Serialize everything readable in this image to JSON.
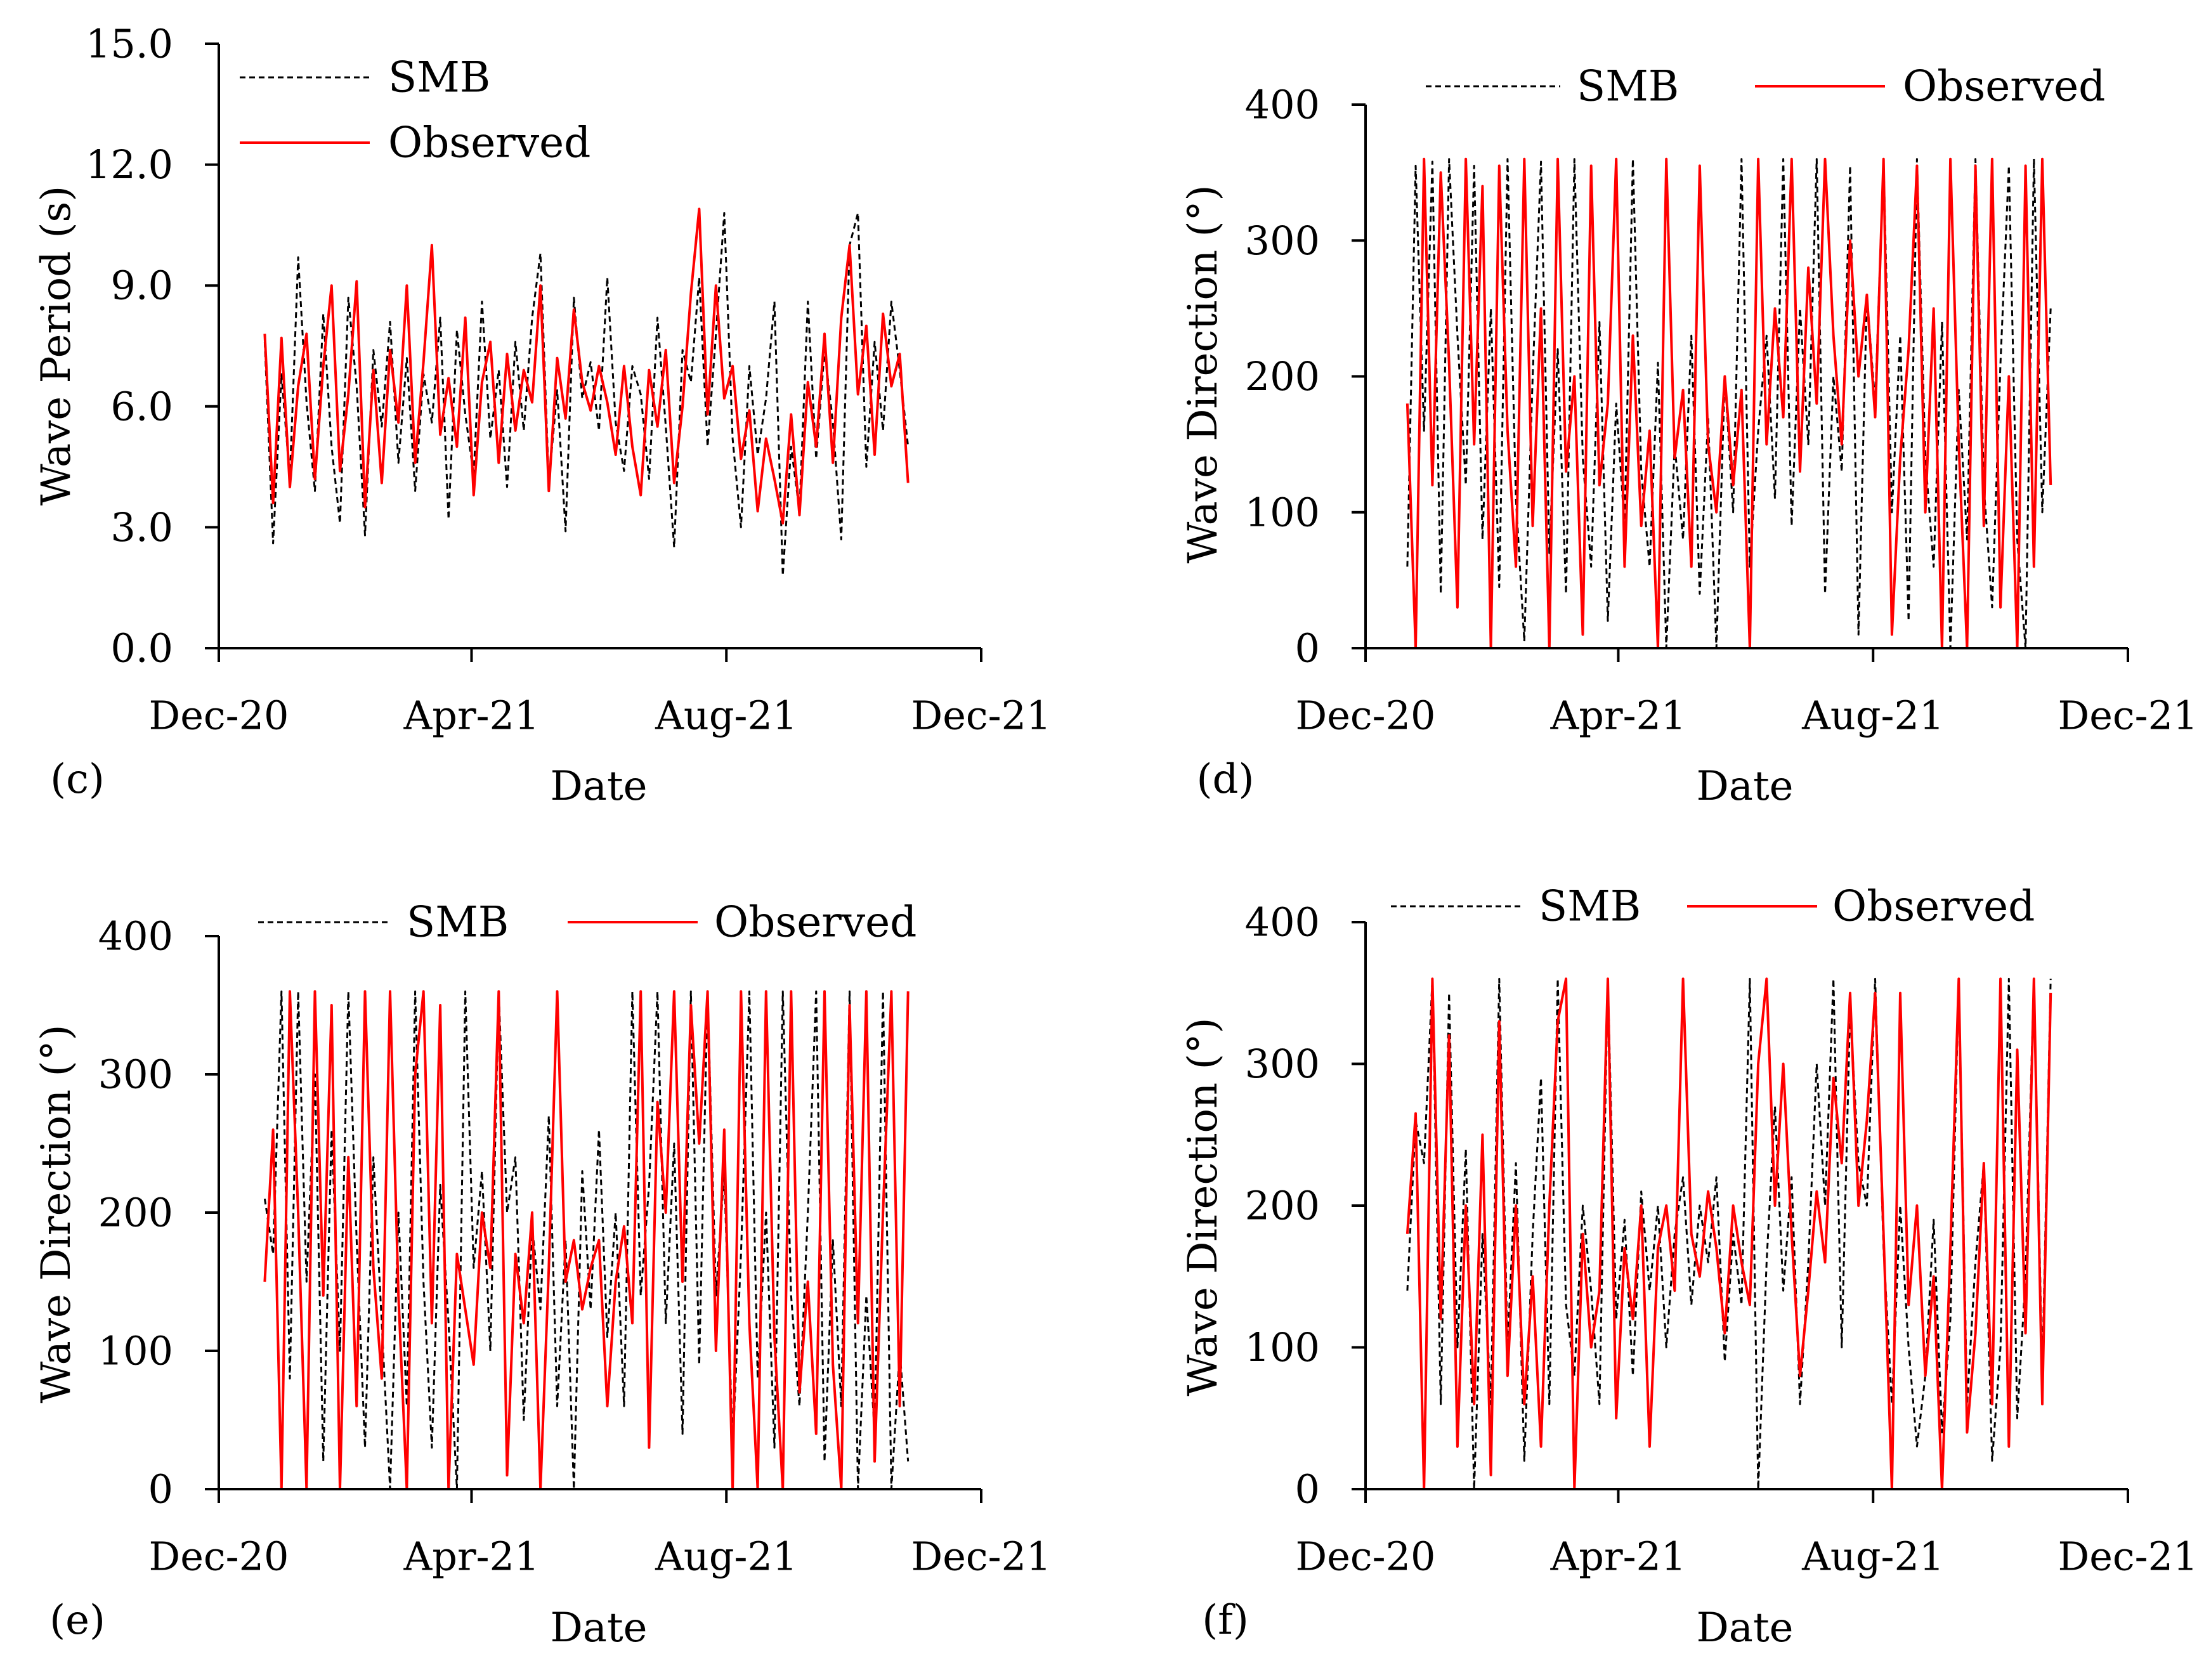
{
  "chart_data": [
    {
      "panel_label": "(c)",
      "type": "line",
      "title": "",
      "xlabel": "Date",
      "ylabel": "Wave Period (s)",
      "grid": false,
      "xlim": [
        0,
        365
      ],
      "x_ticks": [
        0,
        121,
        243,
        365
      ],
      "x_tick_labels": [
        "Dec-20",
        "Apr-21",
        "Aug-21",
        "Dec-21"
      ],
      "ylim": [
        0,
        15
      ],
      "y_ticks": [
        0,
        3,
        6,
        9,
        12,
        15
      ],
      "y_tick_labels": [
        "0.0",
        "3.0",
        "6.0",
        "9.0",
        "12.0",
        "15.0"
      ],
      "x_start": 22,
      "x_step": 4,
      "series": [
        {
          "name": "SMB",
          "color": "#000000",
          "dash": true,
          "values": [
            7.6,
            2.6,
            6.8,
            4.2,
            9.7,
            6.1,
            3.9,
            8.3,
            5.0,
            3.1,
            8.7,
            6.5,
            2.8,
            7.4,
            5.5,
            8.1,
            4.6,
            7.2,
            3.9,
            6.8,
            5.6,
            8.2,
            3.2,
            7.9,
            5.8,
            4.3,
            8.6,
            5.2,
            6.9,
            4.0,
            7.6,
            5.4,
            8.2,
            9.8,
            4.1,
            6.4,
            2.9,
            8.7,
            6.2,
            7.1,
            5.4,
            9.2,
            5.6,
            4.4,
            7.0,
            6.3,
            4.2,
            8.2,
            5.5,
            2.5,
            7.4,
            6.6,
            9.2,
            5.0,
            7.8,
            10.8,
            5.2,
            3.0,
            7.0,
            4.8,
            6.2,
            8.6,
            1.8,
            5.0,
            3.4,
            8.6,
            4.7,
            7.4,
            5.6,
            2.7,
            10.0,
            10.8,
            4.5,
            7.6,
            5.4,
            8.6,
            6.9,
            5.0
          ]
        },
        {
          "name": "Observed",
          "color": "#ff0000",
          "dash": false,
          "values": [
            7.8,
            3.6,
            7.7,
            4.0,
            6.5,
            7.8,
            4.2,
            7.0,
            9.0,
            4.4,
            6.3,
            9.1,
            3.5,
            6.9,
            4.1,
            7.4,
            5.6,
            9.0,
            4.6,
            7.1,
            10.0,
            5.3,
            6.7,
            5.0,
            8.2,
            3.8,
            6.6,
            7.6,
            4.6,
            7.3,
            5.4,
            6.9,
            6.1,
            9.0,
            3.9,
            7.2,
            5.7,
            8.4,
            6.6,
            5.9,
            7.0,
            6.1,
            4.8,
            7.0,
            5.0,
            3.8,
            6.9,
            5.5,
            7.4,
            4.1,
            6.0,
            8.8,
            10.9,
            5.8,
            9.0,
            6.2,
            7.0,
            4.7,
            5.9,
            3.4,
            5.2,
            4.2,
            3.1,
            5.8,
            3.3,
            6.6,
            5.0,
            7.8,
            4.6,
            8.2,
            10.0,
            6.3,
            8.0,
            4.8,
            8.3,
            6.5,
            7.3,
            4.1
          ]
        }
      ]
    },
    {
      "panel_label": "(d)",
      "type": "line",
      "title": "",
      "xlabel": "Date",
      "ylabel": "Wave Direction (°)",
      "grid": false,
      "xlim": [
        0,
        365
      ],
      "x_ticks": [
        0,
        121,
        243,
        365
      ],
      "x_tick_labels": [
        "Dec-20",
        "Apr-21",
        "Aug-21",
        "Dec-21"
      ],
      "ylim": [
        0,
        400
      ],
      "y_ticks": [
        0,
        100,
        200,
        300,
        400
      ],
      "y_tick_labels": [
        "0",
        "100",
        "200",
        "300",
        "400"
      ],
      "x_start": 20,
      "x_step": 4,
      "series": [
        {
          "name": "SMB",
          "color": "#000000",
          "dash": true,
          "values": [
            60,
            355,
            160,
            358,
            40,
            360,
            230,
            120,
            355,
            80,
            250,
            45,
            360,
            110,
            5,
            200,
            358,
            70,
            220,
            40,
            360,
            140,
            60,
            240,
            20,
            180,
            90,
            360,
            130,
            60,
            210,
            0,
            150,
            80,
            230,
            40,
            170,
            0,
            200,
            100,
            360,
            60,
            160,
            230,
            110,
            360,
            90,
            250,
            150,
            360,
            40,
            200,
            130,
            355,
            10,
            260,
            180,
            360,
            100,
            230,
            20,
            360,
            140,
            60,
            240,
            0,
            190,
            80,
            360,
            120,
            30,
            210,
            355,
            80,
            0,
            360,
            100,
            250
          ]
        },
        {
          "name": "Observed",
          "color": "#ff0000",
          "dash": false,
          "values": [
            180,
            0,
            360,
            120,
            350,
            210,
            30,
            360,
            150,
            340,
            0,
            355,
            160,
            60,
            360,
            90,
            250,
            0,
            360,
            130,
            200,
            10,
            355,
            120,
            180,
            360,
            60,
            230,
            90,
            160,
            0,
            360,
            140,
            190,
            60,
            355,
            150,
            100,
            200,
            120,
            190,
            0,
            360,
            150,
            250,
            170,
            360,
            130,
            280,
            180,
            360,
            230,
            150,
            300,
            200,
            260,
            170,
            360,
            10,
            140,
            220,
            355,
            100,
            250,
            0,
            360,
            150,
            0,
            355,
            90,
            360,
            30,
            200,
            0,
            355,
            60,
            360,
            120
          ]
        }
      ]
    },
    {
      "panel_label": "(e)",
      "type": "line",
      "title": "",
      "xlabel": "Date",
      "ylabel": "Wave Direction (°)",
      "grid": false,
      "xlim": [
        0,
        365
      ],
      "x_ticks": [
        0,
        121,
        243,
        365
      ],
      "x_tick_labels": [
        "Dec-20",
        "Apr-21",
        "Aug-21",
        "Dec-21"
      ],
      "ylim": [
        0,
        400
      ],
      "y_ticks": [
        0,
        100,
        200,
        300,
        400
      ],
      "y_tick_labels": [
        "0",
        "100",
        "200",
        "300",
        "400"
      ],
      "x_start": 22,
      "x_step": 4,
      "series": [
        {
          "name": "SMB",
          "color": "#000000",
          "dash": true,
          "values": [
            210,
            170,
            360,
            80,
            360,
            150,
            300,
            20,
            260,
            100,
            360,
            180,
            30,
            240,
            120,
            0,
            200,
            60,
            360,
            150,
            30,
            220,
            120,
            0,
            360,
            160,
            230,
            100,
            360,
            200,
            240,
            50,
            190,
            130,
            270,
            60,
            180,
            0,
            230,
            130,
            260,
            110,
            200,
            60,
            360,
            140,
            220,
            360,
            120,
            250,
            40,
            360,
            90,
            360,
            140,
            230,
            30,
            170,
            360,
            80,
            200,
            30,
            360,
            140,
            60,
            200,
            360,
            20,
            180,
            60,
            360,
            0,
            140,
            40,
            360,
            0,
            100,
            20
          ]
        },
        {
          "name": "Observed",
          "color": "#ff0000",
          "dash": false,
          "values": [
            150,
            260,
            0,
            360,
            200,
            0,
            360,
            140,
            350,
            0,
            240,
            60,
            360,
            160,
            80,
            360,
            140,
            0,
            300,
            360,
            120,
            350,
            0,
            170,
            130,
            90,
            200,
            160,
            360,
            10,
            170,
            120,
            200,
            0,
            160,
            360,
            150,
            180,
            130,
            160,
            180,
            60,
            150,
            190,
            120,
            360,
            30,
            280,
            200,
            360,
            150,
            350,
            250,
            360,
            100,
            260,
            0,
            360,
            120,
            0,
            360,
            110,
            0,
            360,
            70,
            150,
            40,
            360,
            90,
            0,
            350,
            120,
            360,
            20,
            200,
            360,
            60,
            360
          ]
        }
      ]
    },
    {
      "panel_label": "(f)",
      "type": "line",
      "title": "",
      "xlabel": "Date",
      "ylabel": "Wave Direction (°)",
      "grid": false,
      "xlim": [
        0,
        365
      ],
      "x_ticks": [
        0,
        121,
        243,
        365
      ],
      "x_tick_labels": [
        "Dec-20",
        "Apr-21",
        "Aug-21",
        "Dec-21"
      ],
      "ylim": [
        0,
        400
      ],
      "y_ticks": [
        0,
        100,
        200,
        300,
        400
      ],
      "y_tick_labels": [
        "0",
        "100",
        "200",
        "300",
        "400"
      ],
      "x_start": 20,
      "x_step": 4,
      "series": [
        {
          "name": "SMB",
          "color": "#000000",
          "dash": true,
          "values": [
            140,
            260,
            230,
            360,
            60,
            350,
            100,
            240,
            0,
            180,
            60,
            360,
            100,
            230,
            20,
            180,
            290,
            60,
            360,
            130,
            80,
            200,
            140,
            60,
            360,
            120,
            190,
            80,
            210,
            140,
            200,
            100,
            180,
            220,
            130,
            200,
            160,
            220,
            90,
            180,
            130,
            360,
            0,
            160,
            270,
            140,
            220,
            60,
            160,
            300,
            200,
            360,
            100,
            340,
            230,
            200,
            360,
            170,
            60,
            200,
            100,
            30,
            80,
            190,
            40,
            120,
            360,
            60,
            160,
            230,
            20,
            100,
            360,
            50,
            150,
            360,
            80,
            360
          ]
        },
        {
          "name": "Observed",
          "color": "#ff0000",
          "dash": false,
          "values": [
            180,
            265,
            0,
            360,
            120,
            320,
            30,
            200,
            60,
            250,
            10,
            330,
            80,
            200,
            60,
            150,
            30,
            200,
            330,
            360,
            0,
            180,
            100,
            140,
            360,
            50,
            170,
            120,
            200,
            30,
            170,
            200,
            140,
            360,
            180,
            150,
            210,
            170,
            110,
            200,
            160,
            130,
            300,
            360,
            200,
            300,
            180,
            80,
            140,
            210,
            160,
            290,
            230,
            350,
            200,
            260,
            350,
            180,
            0,
            350,
            130,
            200,
            80,
            150,
            0,
            170,
            360,
            40,
            110,
            230,
            60,
            360,
            30,
            310,
            110,
            360,
            60,
            350
          ]
        }
      ]
    }
  ]
}
